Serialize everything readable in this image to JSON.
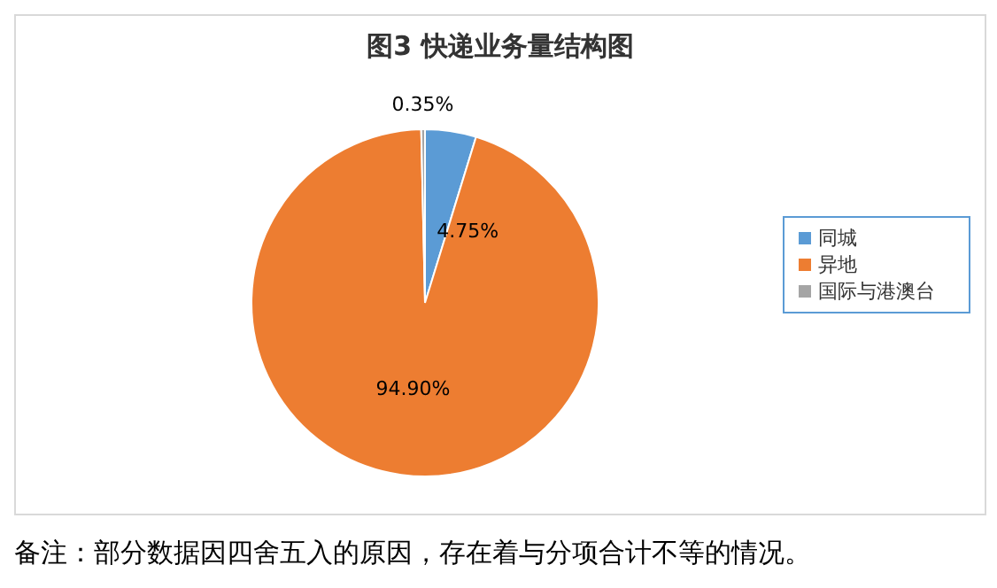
{
  "chart_data": {
    "type": "pie",
    "title": "图3 快递业务量结构图",
    "categories": [
      "同城",
      "异地",
      "国际与港澳台"
    ],
    "values": [
      4.75,
      94.9,
      0.35
    ],
    "colors": [
      "#5b9bd5",
      "#ed7d31",
      "#a5a5a5"
    ],
    "value_labels": [
      "4.75%",
      "94.90%",
      "0.35%"
    ],
    "legend": "right",
    "annotations": [
      "备注：部分数据因四舍五入的原因，存在着与分项合计不等的情况。"
    ]
  }
}
